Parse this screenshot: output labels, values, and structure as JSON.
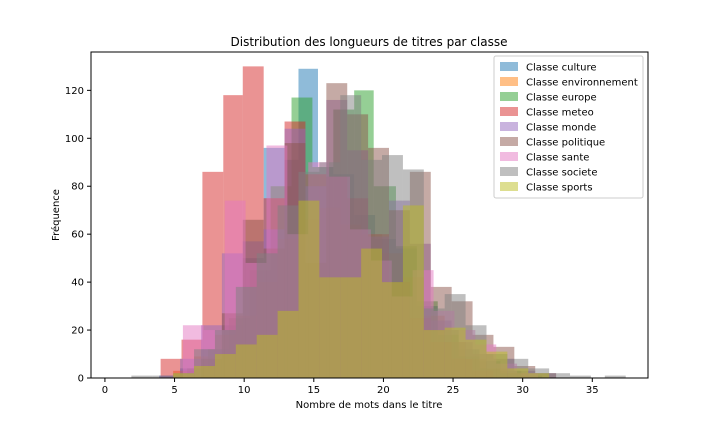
{
  "chart_data": {
    "type": "histogram",
    "title": "Distribution des longueurs de titres par classe",
    "xlabel": "Nombre de mots dans le titre",
    "ylabel": "Fréquence",
    "xlim": [
      -1,
      39
    ],
    "ylim": [
      0,
      136
    ],
    "xticks": [
      0,
      5,
      10,
      15,
      20,
      25,
      30,
      35
    ],
    "yticks": [
      0,
      20,
      40,
      60,
      80,
      100,
      120
    ],
    "grid": false,
    "legend_position": "top-right",
    "bar_opacity": 0.5,
    "series": [
      {
        "name": "Classe culture",
        "color": "#1f77b4",
        "bins": [
          [
            3.9,
            5.4,
            1
          ],
          [
            5.4,
            6.9,
            4
          ],
          [
            6.9,
            8.4,
            12
          ],
          [
            8.4,
            9.9,
            22
          ],
          [
            9.9,
            11.4,
            50
          ],
          [
            11.4,
            12.9,
            96
          ],
          [
            12.9,
            13.9,
            91
          ],
          [
            13.9,
            15.3,
            129
          ],
          [
            15.3,
            16.4,
            88
          ],
          [
            16.4,
            17.9,
            85
          ],
          [
            17.9,
            19.4,
            68
          ],
          [
            19.4,
            20.9,
            58
          ],
          [
            20.9,
            22.4,
            54
          ],
          [
            22.4,
            23.9,
            30
          ],
          [
            23.9,
            25.4,
            20
          ],
          [
            25.4,
            26.9,
            12
          ],
          [
            26.9,
            28.4,
            7
          ],
          [
            28.4,
            29.9,
            3
          ],
          [
            29.9,
            31.4,
            1
          ]
        ]
      },
      {
        "name": "Classe environnement",
        "color": "#ff7f0e",
        "bins": [
          [
            4.9,
            6.4,
            3
          ],
          [
            6.4,
            7.9,
            9
          ],
          [
            7.9,
            9.4,
            18
          ],
          [
            9.4,
            10.9,
            26
          ],
          [
            10.9,
            12.4,
            40
          ],
          [
            12.4,
            13.9,
            58
          ],
          [
            13.9,
            15.4,
            66
          ],
          [
            15.4,
            16.9,
            71
          ],
          [
            16.9,
            18.4,
            64
          ],
          [
            18.4,
            19.9,
            60
          ],
          [
            19.9,
            21.4,
            52
          ],
          [
            21.4,
            22.9,
            42
          ],
          [
            22.9,
            24.4,
            26
          ],
          [
            24.4,
            25.9,
            15
          ],
          [
            25.9,
            27.4,
            8
          ],
          [
            27.4,
            28.9,
            4
          ],
          [
            28.9,
            30.4,
            2
          ]
        ]
      },
      {
        "name": "Classe europe",
        "color": "#2ca02c",
        "bins": [
          [
            5.9,
            7.4,
            4
          ],
          [
            7.4,
            8.9,
            12
          ],
          [
            8.9,
            10.4,
            25
          ],
          [
            10.4,
            11.9,
            45
          ],
          [
            11.9,
            13.4,
            80
          ],
          [
            13.4,
            14.9,
            117
          ],
          [
            14.9,
            16.4,
            88
          ],
          [
            16.4,
            17.9,
            112
          ],
          [
            17.9,
            19.3,
            120
          ],
          [
            19.3,
            20.9,
            80
          ],
          [
            20.9,
            22.4,
            55
          ],
          [
            22.4,
            23.9,
            32
          ],
          [
            23.9,
            25.4,
            18
          ],
          [
            25.4,
            26.9,
            9
          ],
          [
            26.9,
            28.4,
            4
          ],
          [
            28.4,
            29.9,
            2
          ]
        ]
      },
      {
        "name": "Classe meteo",
        "color": "#d62728",
        "bins": [
          [
            4.0,
            5.5,
            8
          ],
          [
            5.5,
            7.0,
            16
          ],
          [
            7.0,
            8.5,
            86
          ],
          [
            8.5,
            9.9,
            118
          ],
          [
            9.9,
            11.4,
            130
          ],
          [
            11.4,
            12.9,
            75
          ],
          [
            12.9,
            14.4,
            107
          ],
          [
            14.4,
            15.9,
            85
          ],
          [
            15.9,
            17.4,
            84
          ],
          [
            17.4,
            18.9,
            75
          ],
          [
            18.9,
            20.4,
            60
          ],
          [
            20.4,
            21.9,
            40
          ],
          [
            21.9,
            23.4,
            25
          ],
          [
            23.4,
            24.9,
            15
          ],
          [
            24.9,
            26.4,
            8
          ],
          [
            26.4,
            27.9,
            3
          ]
        ]
      },
      {
        "name": "Classe monde",
        "color": "#9467bd",
        "bins": [
          [
            3.9,
            5.4,
            1
          ],
          [
            5.4,
            6.9,
            8
          ],
          [
            6.9,
            8.4,
            22
          ],
          [
            8.4,
            9.9,
            52
          ],
          [
            9.9,
            11.4,
            57
          ],
          [
            11.4,
            12.9,
            62
          ],
          [
            12.9,
            14.4,
            104
          ],
          [
            14.4,
            15.9,
            80
          ],
          [
            15.9,
            17.4,
            116
          ],
          [
            17.4,
            18.9,
            95
          ],
          [
            18.9,
            20.4,
            59
          ],
          [
            20.4,
            21.9,
            74
          ],
          [
            21.9,
            23.4,
            56
          ],
          [
            23.4,
            24.9,
            24
          ],
          [
            24.9,
            26.4,
            15
          ],
          [
            26.4,
            27.9,
            10
          ],
          [
            27.9,
            29.4,
            8
          ],
          [
            29.4,
            30.9,
            3
          ],
          [
            30.9,
            32.4,
            2
          ]
        ]
      },
      {
        "name": "Classe politique",
        "color": "#8c564b",
        "bins": [
          [
            6.9,
            8.4,
            8
          ],
          [
            8.4,
            9.9,
            27
          ],
          [
            9.9,
            11.4,
            66
          ],
          [
            11.4,
            12.9,
            54
          ],
          [
            12.9,
            14.4,
            98
          ],
          [
            14.4,
            15.9,
            48
          ],
          [
            15.9,
            17.4,
            123
          ],
          [
            17.4,
            18.9,
            110
          ],
          [
            18.9,
            20.4,
            96
          ],
          [
            20.4,
            21.9,
            70
          ],
          [
            21.9,
            23.4,
            86
          ],
          [
            23.4,
            24.9,
            38
          ],
          [
            24.9,
            26.4,
            32
          ],
          [
            26.4,
            27.9,
            18
          ],
          [
            27.9,
            29.4,
            13
          ],
          [
            29.4,
            30.9,
            5
          ],
          [
            30.9,
            32.4,
            2
          ]
        ]
      },
      {
        "name": "Classe sante",
        "color": "#e377c2",
        "bins": [
          [
            5.6,
            7.1,
            22
          ],
          [
            7.1,
            8.6,
            20
          ],
          [
            8.6,
            10.1,
            74
          ],
          [
            10.1,
            11.6,
            48
          ],
          [
            11.6,
            13.1,
            97
          ],
          [
            13.1,
            14.6,
            60
          ],
          [
            14.6,
            16.1,
            90
          ],
          [
            16.1,
            17.6,
            84
          ],
          [
            17.6,
            19.1,
            62
          ],
          [
            19.1,
            20.6,
            49
          ],
          [
            20.6,
            22.1,
            34
          ],
          [
            22.1,
            23.6,
            45
          ],
          [
            23.6,
            25.1,
            28
          ],
          [
            25.1,
            26.6,
            20
          ],
          [
            26.6,
            28.1,
            14
          ],
          [
            28.1,
            29.6,
            6
          ],
          [
            29.6,
            31.1,
            2
          ]
        ]
      },
      {
        "name": "Classe societe",
        "color": "#7f7f7f",
        "bins": [
          [
            1.9,
            3.4,
            1
          ],
          [
            3.4,
            4.9,
            1
          ],
          [
            4.9,
            6.4,
            2
          ],
          [
            6.4,
            7.9,
            12
          ],
          [
            7.9,
            9.4,
            20
          ],
          [
            9.4,
            10.9,
            38
          ],
          [
            10.9,
            12.4,
            52
          ],
          [
            12.4,
            13.9,
            72
          ],
          [
            13.9,
            15.4,
            86
          ],
          [
            15.4,
            16.9,
            90
          ],
          [
            16.9,
            18.4,
            118
          ],
          [
            18.4,
            19.9,
            91
          ],
          [
            19.9,
            21.4,
            93
          ],
          [
            21.4,
            22.9,
            87
          ],
          [
            22.9,
            24.4,
            29
          ],
          [
            24.4,
            25.9,
            35
          ],
          [
            25.9,
            27.4,
            22
          ],
          [
            27.4,
            28.9,
            10
          ],
          [
            28.9,
            30.4,
            8
          ],
          [
            30.4,
            31.9,
            4
          ],
          [
            31.9,
            33.4,
            2
          ],
          [
            33.4,
            34.9,
            1
          ],
          [
            35.9,
            37.4,
            1
          ]
        ]
      },
      {
        "name": "Classe sports",
        "color": "#bcbd22",
        "bins": [
          [
            4.9,
            6.4,
            2
          ],
          [
            6.4,
            7.9,
            5
          ],
          [
            7.9,
            9.4,
            10
          ],
          [
            9.4,
            10.9,
            14
          ],
          [
            10.9,
            12.4,
            18
          ],
          [
            12.4,
            13.9,
            28
          ],
          [
            13.9,
            15.4,
            74
          ],
          [
            15.4,
            16.9,
            42
          ],
          [
            16.9,
            18.4,
            42
          ],
          [
            18.4,
            19.9,
            54
          ],
          [
            19.9,
            21.4,
            40
          ],
          [
            21.4,
            22.9,
            72
          ],
          [
            22.9,
            24.4,
            20
          ],
          [
            24.4,
            25.9,
            21
          ],
          [
            25.9,
            27.4,
            16
          ],
          [
            27.4,
            28.9,
            11
          ],
          [
            28.9,
            30.4,
            4
          ],
          [
            30.4,
            31.9,
            2
          ]
        ]
      }
    ]
  }
}
